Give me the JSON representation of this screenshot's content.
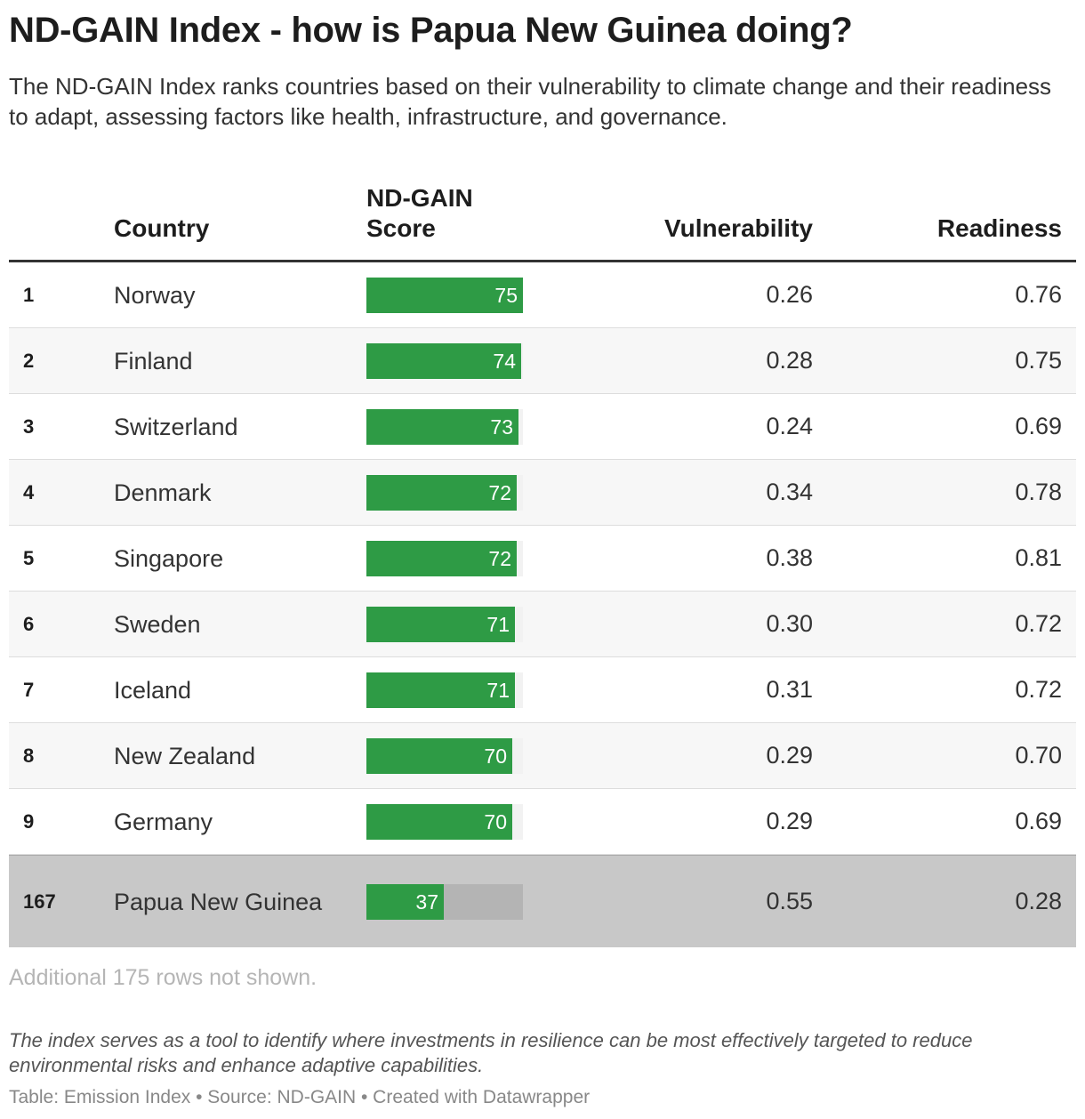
{
  "title": "ND-GAIN Index - how is Papua New Guinea doing?",
  "subtitle": "The ND-GAIN Index ranks countries based on their vulnerability to climate change and their readiness to adapt, assessing factors like health, infrastructure, and governance.",
  "columns": {
    "rank": "",
    "country": "Country",
    "score": "ND-GAIN Score",
    "vulnerability": "Vulnerability",
    "readiness": "Readiness"
  },
  "chart_data": {
    "type": "table",
    "score_range": [
      0,
      75
    ],
    "bar_color": "#2e9b45",
    "highlight_color": "#c8c8c8",
    "rows": [
      {
        "rank": "1",
        "country": "Norway",
        "score": 75,
        "vulnerability": "0.26",
        "readiness": "0.76"
      },
      {
        "rank": "2",
        "country": "Finland",
        "score": 74,
        "vulnerability": "0.28",
        "readiness": "0.75"
      },
      {
        "rank": "3",
        "country": "Switzerland",
        "score": 73,
        "vulnerability": "0.24",
        "readiness": "0.69"
      },
      {
        "rank": "4",
        "country": "Denmark",
        "score": 72,
        "vulnerability": "0.34",
        "readiness": "0.78"
      },
      {
        "rank": "5",
        "country": "Singapore",
        "score": 72,
        "vulnerability": "0.38",
        "readiness": "0.81"
      },
      {
        "rank": "6",
        "country": "Sweden",
        "score": 71,
        "vulnerability": "0.30",
        "readiness": "0.72"
      },
      {
        "rank": "7",
        "country": "Iceland",
        "score": 71,
        "vulnerability": "0.31",
        "readiness": "0.72"
      },
      {
        "rank": "8",
        "country": "New Zealand",
        "score": 70,
        "vulnerability": "0.29",
        "readiness": "0.70"
      },
      {
        "rank": "9",
        "country": "Germany",
        "score": 70,
        "vulnerability": "0.29",
        "readiness": "0.69"
      },
      {
        "rank": "167",
        "country": "Papua New Guinea",
        "score": 37,
        "vulnerability": "0.55",
        "readiness": "0.28",
        "highlighted": true
      }
    ]
  },
  "notes": "Additional 175 rows not shown.",
  "description": "The index serves as a tool to identify where investments in resilience can be most effectively targeted to reduce environmental risks and enhance adaptive capabilities.",
  "footer": "Table: Emission Index • Source: ND-GAIN • Created with Datawrapper"
}
